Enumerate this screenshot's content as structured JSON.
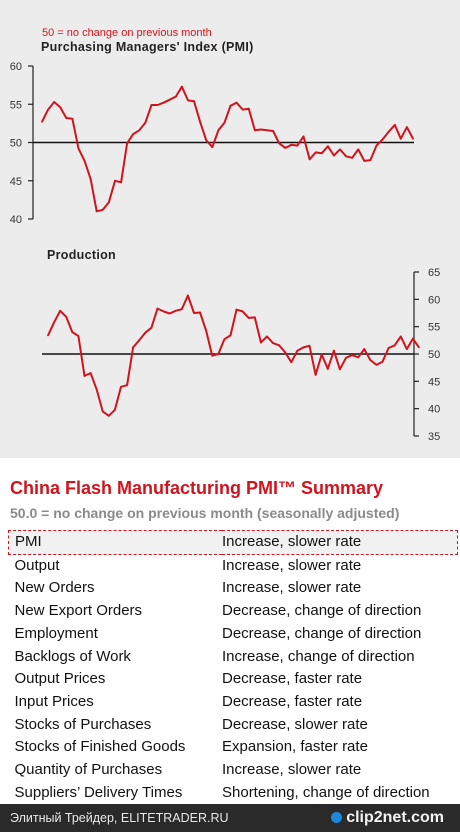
{
  "chart_data": [
    {
      "type": "line",
      "note": "50 = no change on previous month",
      "title": "Purchasing Managers' Index (PMI)",
      "ylim": [
        40,
        60
      ],
      "yticks": [
        40,
        45,
        50,
        55,
        60
      ],
      "ytick_labels": [
        "40",
        "45",
        "50",
        "55",
        "60"
      ],
      "reference_line": 50,
      "line_color": "#d0141e",
      "values": [
        52.7,
        54.3,
        55.3,
        54.6,
        53.2,
        53.1,
        49.2,
        47.6,
        45.2,
        41.0,
        41.2,
        42.2,
        45.0,
        44.8,
        49.9,
        51.1,
        51.6,
        52.6,
        54.9,
        54.9,
        55.2,
        55.6,
        56.0,
        57.3,
        55.5,
        55.4,
        52.7,
        50.3,
        49.4,
        51.6,
        52.6,
        54.8,
        55.2,
        54.3,
        54.4,
        51.6,
        51.7,
        51.6,
        51.5,
        49.9,
        49.3,
        49.7,
        49.6,
        50.8,
        47.8,
        48.7,
        48.6,
        49.5,
        48.3,
        49.1,
        48.2,
        48.0,
        49.1,
        47.6,
        47.7,
        49.6,
        50.4,
        51.4,
        52.3,
        50.5,
        52.0,
        50.5
      ]
    },
    {
      "type": "line",
      "title": "Production",
      "ylim": [
        35,
        65
      ],
      "yticks": [
        35,
        40,
        45,
        50,
        55,
        60,
        65
      ],
      "ytick_labels": [
        "35",
        "40",
        "45",
        "50",
        "55",
        "60",
        "65"
      ],
      "reference_line": 50,
      "line_color": "#d0141e",
      "values": [
        53.4,
        55.8,
        57.9,
        56.8,
        54.0,
        53.3,
        46.0,
        46.5,
        43.5,
        39.5,
        38.7,
        39.8,
        44.0,
        44.3,
        51.2,
        52.5,
        53.9,
        54.8,
        58.3,
        57.8,
        57.4,
        57.9,
        58.2,
        60.7,
        57.5,
        57.6,
        54.3,
        49.7,
        50.0,
        52.7,
        53.4,
        58.1,
        57.8,
        56.6,
        56.7,
        52.1,
        53.2,
        52.0,
        51.6,
        50.3,
        48.5,
        50.6,
        51.2,
        51.5,
        46.2,
        49.9,
        47.3,
        50.6,
        47.2,
        49.3,
        49.8,
        49.4,
        50.9,
        48.9,
        48.0,
        48.6,
        51.1,
        51.6,
        53.2,
        50.9,
        52.8,
        51.2
      ]
    }
  ],
  "summary": {
    "title": "China Flash Manufacturing PMI™ Summary",
    "subtitle": "50.0 = no change on previous month (seasonally adjusted)",
    "rows": [
      {
        "label": "PMI",
        "value": "Increase, slower rate"
      },
      {
        "label": "Output",
        "value": "Increase, slower rate"
      },
      {
        "label": "New Orders",
        "value": "Increase, slower rate"
      },
      {
        "label": "New Export Orders",
        "value": "Decrease, change of direction"
      },
      {
        "label": "Employment",
        "value": "Decrease, change of direction"
      },
      {
        "label": "Backlogs of Work",
        "value": "Increase, change of direction"
      },
      {
        "label": "Output Prices",
        "value": "Decrease, faster rate"
      },
      {
        "label": "Input Prices",
        "value": "Decrease, faster rate"
      },
      {
        "label": "Stocks of Purchases",
        "value": "Decrease, slower rate"
      },
      {
        "label": "Stocks of Finished Goods",
        "value": "Expansion, faster rate"
      },
      {
        "label": "Quantity of Purchases",
        "value": "Increase, slower rate"
      },
      {
        "label": "Suppliers’ Delivery Times",
        "value": "Shortening, change of direction"
      }
    ]
  },
  "footer": {
    "text": "Элитный Трейдер, ELITETRADER.RU",
    "brand": "clip2net.com"
  }
}
